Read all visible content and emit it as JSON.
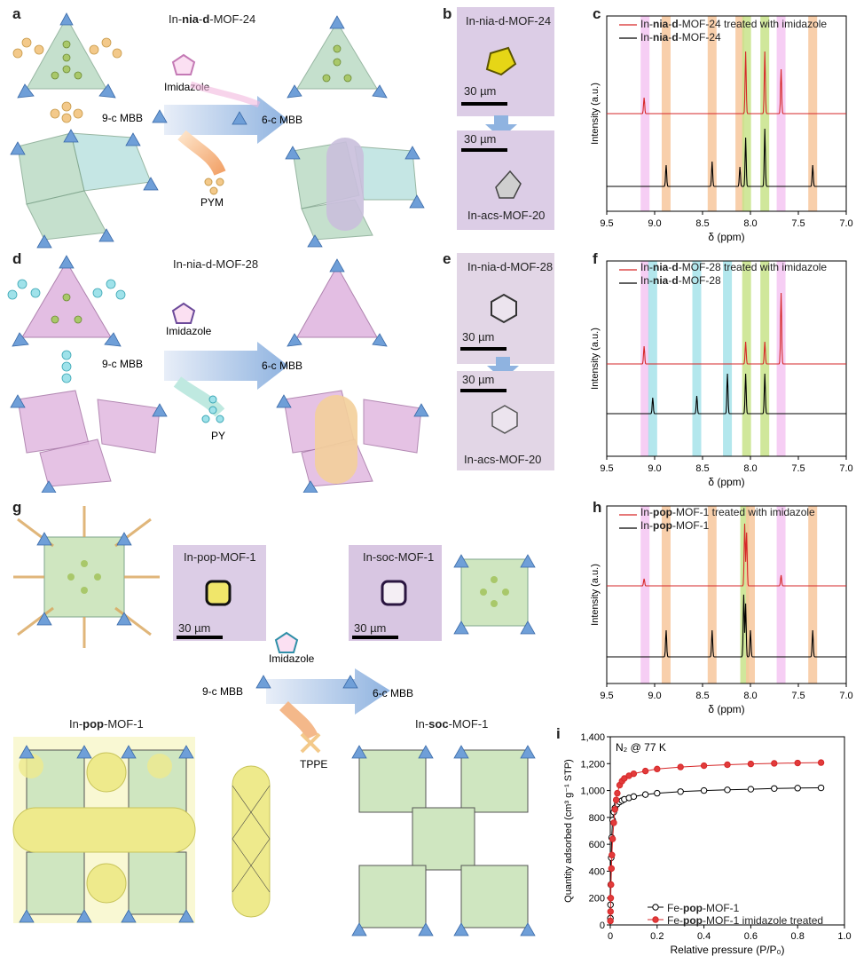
{
  "panel_letters": {
    "a": "a",
    "b": "b",
    "c": "c",
    "d": "d",
    "e": "e",
    "f": "f",
    "g": "g",
    "h": "h",
    "i": "i"
  },
  "panel_a": {
    "title_pre": "In-",
    "title_bold": "nia",
    "title_dash": "-",
    "title_bold2": "d",
    "title_post": "-MOF-24",
    "imidazole": "Imidazole",
    "mbb9": "9-c MBB",
    "mbb6": "6-c MBB",
    "linker": "PYM"
  },
  "panel_b": {
    "top_label": "In-nia-d-MOF-24",
    "bottom_label": "In-acs-MOF-20",
    "scale": "30 µm"
  },
  "panel_d": {
    "title": "In-nia-d-MOF-28",
    "imidazole": "Imidazole",
    "mbb9": "9-c MBB",
    "mbb6": "6-c MBB",
    "linker": "PY"
  },
  "panel_e": {
    "top_label": "In-nia-d-MOF-28",
    "bottom_label": "In-acs-MOF-20",
    "scale": "30 µm"
  },
  "panel_g": {
    "pop_label": "In-pop-MOF-1",
    "soc_label": "In-soc-MOF-1",
    "scale": "30 µm",
    "imidazole": "Imidazole",
    "mbb9": "9-c MBB",
    "mbb6": "6-c MBB",
    "linker": "TPPE",
    "bottom_left": "In-pop-MOF-1",
    "bottom_right": "In-soc-MOF-1"
  },
  "nmr_common": {
    "xlabel": "δ (ppm)",
    "ylabel": "Intensity (a.u.)",
    "xticks": [
      "9.5",
      "9.0",
      "8.5",
      "8.0",
      "7.5",
      "7.0"
    ]
  },
  "chart_data": [
    {
      "type": "line",
      "panel": "c",
      "xlabel": "δ (ppm)",
      "ylabel": "Intensity (a.u.)",
      "xlim": [
        9.5,
        7.0
      ],
      "x_reversed": true,
      "series": [
        {
          "name": "In-nia-d-MOF-24 treated with imidazole",
          "color": "#d62728",
          "peaks": [
            9.11,
            8.05,
            7.85,
            7.68
          ]
        },
        {
          "name": "In-nia-d-MOF-24",
          "color": "#000000",
          "peaks": [
            8.88,
            8.4,
            8.11,
            8.05,
            7.85,
            7.35
          ]
        }
      ],
      "highlight_bands": [
        {
          "x": 9.1,
          "color": "#f5c6f2"
        },
        {
          "x": 8.88,
          "color": "#f7c79c"
        },
        {
          "x": 8.4,
          "color": "#f7c79c"
        },
        {
          "x": 8.11,
          "color": "#f7c79c"
        },
        {
          "x": 8.04,
          "color": "#c8e38a"
        },
        {
          "x": 7.85,
          "color": "#c8e38a"
        },
        {
          "x": 7.68,
          "color": "#f5c6f2"
        },
        {
          "x": 7.35,
          "color": "#f7c79c"
        }
      ]
    },
    {
      "type": "line",
      "panel": "f",
      "xlabel": "δ (ppm)",
      "ylabel": "Intensity (a.u.)",
      "xlim": [
        9.5,
        7.0
      ],
      "x_reversed": true,
      "series": [
        {
          "name": "In-nia-d-MOF-28 treated with imidazole",
          "color": "#d62728",
          "peaks": [
            9.11,
            8.05,
            7.85,
            7.68
          ]
        },
        {
          "name": "In-nia-d-MOF-28",
          "color": "#000000",
          "peaks": [
            9.02,
            8.56,
            8.24,
            8.05,
            7.85
          ]
        }
      ],
      "highlight_bands": [
        {
          "x": 9.1,
          "color": "#f5c6f2"
        },
        {
          "x": 9.02,
          "color": "#a6e3ea"
        },
        {
          "x": 8.56,
          "color": "#a6e3ea"
        },
        {
          "x": 8.24,
          "color": "#a6e3ea"
        },
        {
          "x": 8.04,
          "color": "#c8e38a"
        },
        {
          "x": 7.85,
          "color": "#c8e38a"
        },
        {
          "x": 7.68,
          "color": "#f5c6f2"
        }
      ]
    },
    {
      "type": "line",
      "panel": "h",
      "xlabel": "δ (ppm)",
      "ylabel": "Intensity (a.u.)",
      "xlim": [
        9.5,
        7.0
      ],
      "x_reversed": true,
      "series": [
        {
          "name": "In-pop-MOF-1 treated with imidazole",
          "color": "#d62728",
          "peaks": [
            9.11,
            8.06,
            8.04,
            7.68
          ]
        },
        {
          "name": "In-pop-MOF-1",
          "color": "#000000",
          "peaks": [
            8.88,
            8.4,
            8.07,
            8.05,
            8.0,
            7.35
          ]
        }
      ],
      "highlight_bands": [
        {
          "x": 9.1,
          "color": "#f5c6f2"
        },
        {
          "x": 8.88,
          "color": "#f7c79c"
        },
        {
          "x": 8.4,
          "color": "#f7c79c"
        },
        {
          "x": 8.06,
          "color": "#c8e38a"
        },
        {
          "x": 8.0,
          "color": "#f7c79c"
        },
        {
          "x": 7.68,
          "color": "#f5c6f2"
        },
        {
          "x": 7.35,
          "color": "#f7c79c"
        }
      ]
    },
    {
      "type": "scatter",
      "panel": "i",
      "annotation": "N₂ @ 77 K",
      "xlabel": "Relative pressure (P/P₀)",
      "ylabel": "Quantity adsorbed (cm³ g⁻¹ STP)",
      "xlim": [
        0,
        1.0
      ],
      "ylim": [
        0,
        1400
      ],
      "xticks": [
        "0",
        "0.2",
        "0.4",
        "0.6",
        "0.8",
        "1.0"
      ],
      "yticks": [
        "0",
        "200",
        "400",
        "600",
        "800",
        "1,000",
        "1,200",
        "1,400"
      ],
      "series": [
        {
          "name": "Fe-pop-MOF-1",
          "color": "#000000",
          "x": [
            0.0005,
            0.001,
            0.002,
            0.004,
            0.006,
            0.01,
            0.015,
            0.02,
            0.03,
            0.04,
            0.05,
            0.06,
            0.08,
            0.1,
            0.15,
            0.2,
            0.3,
            0.4,
            0.5,
            0.6,
            0.7,
            0.8,
            0.9
          ],
          "y": [
            50,
            150,
            300,
            500,
            650,
            780,
            840,
            870,
            900,
            915,
            925,
            935,
            945,
            955,
            970,
            980,
            992,
            1000,
            1005,
            1010,
            1015,
            1018,
            1020
          ]
        },
        {
          "name": "Fe-pop-MOF-1 imidazole treated",
          "color": "#d62728",
          "x": [
            0.0005,
            0.001,
            0.002,
            0.003,
            0.005,
            0.007,
            0.01,
            0.015,
            0.02,
            0.025,
            0.03,
            0.04,
            0.05,
            0.06,
            0.08,
            0.1,
            0.15,
            0.2,
            0.3,
            0.4,
            0.5,
            0.6,
            0.7,
            0.8,
            0.9
          ],
          "y": [
            30,
            100,
            200,
            300,
            420,
            520,
            640,
            760,
            860,
            930,
            980,
            1040,
            1070,
            1090,
            1110,
            1125,
            1145,
            1160,
            1175,
            1185,
            1192,
            1198,
            1202,
            1205,
            1208
          ]
        }
      ],
      "legend": "bottom-right"
    }
  ],
  "legend_text": {
    "c1_pre": "In-",
    "c1_b1": "nia",
    "c1_mid": "-",
    "c1_b2": "d",
    "c1_post": "-MOF-24 treated with imidazole",
    "c2_pre": "In-",
    "c2_b1": "nia",
    "c2_mid": "-",
    "c2_b2": "d",
    "c2_post": "-MOF-24",
    "f1_pre": "In-",
    "f1_b1": "nia",
    "f1_mid": "-",
    "f1_b2": "d",
    "f1_post": "-MOF-28 treated with imidazole",
    "f2_pre": "In-",
    "f2_b1": "nia",
    "f2_mid": "-",
    "f2_b2": "d",
    "f2_post": "-MOF-28",
    "h1_pre": "In-",
    "h1_b": "pop",
    "h1_post": "-MOF-1 treated with imidazole",
    "h2_pre": "In-",
    "h2_b": "pop",
    "h2_post": "-MOF-1",
    "i1_pre": "Fe-",
    "i1_b": "pop",
    "i1_post": "-MOF-1",
    "i2_pre": "Fe-",
    "i2_b": "pop",
    "i2_post": "-MOF-1 imidazole treated"
  }
}
